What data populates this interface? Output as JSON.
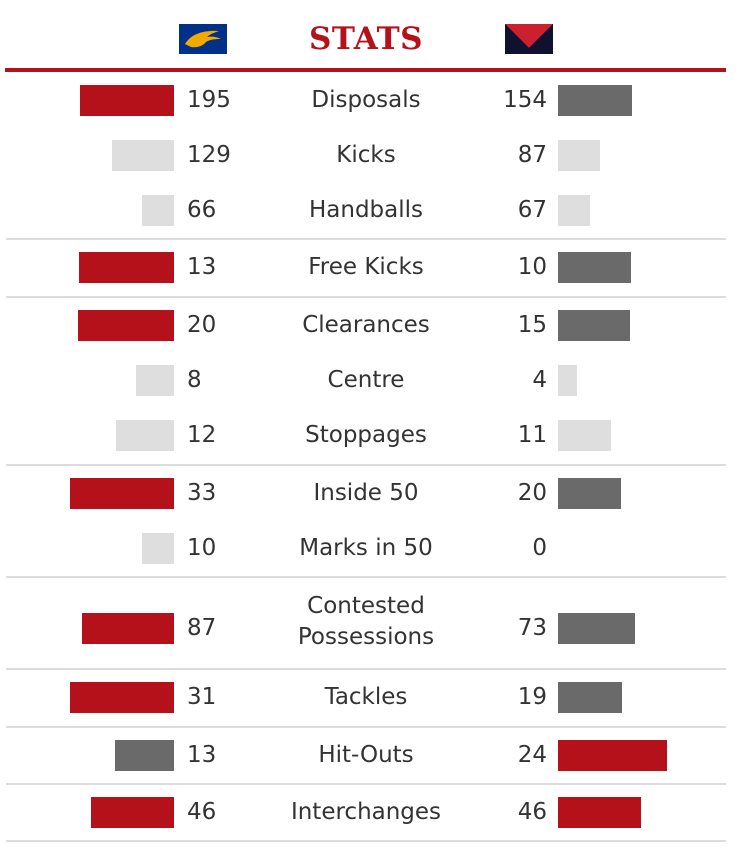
{
  "header": {
    "title": "STATS",
    "home_logo_icon": "eagle-logo-icon",
    "away_logo_icon": "demon-diamond-logo-icon"
  },
  "colors": {
    "leader": "#b5111b",
    "trailer": "#6a6a6a",
    "neutral": "#dedede",
    "title": "#b5111b",
    "home_logo_bg": "#003087",
    "home_logo_accent": "#f2a900",
    "away_logo_top": "#0f1131",
    "away_logo_red": "#cc2031"
  },
  "stats": [
    {
      "label": "Disposals",
      "home": "195",
      "away": "154",
      "home_val": 195,
      "away_val": 154,
      "home_style": "leader",
      "away_style": "trailer",
      "scale": 0.483
    },
    {
      "label": "Kicks",
      "home": "129",
      "away": "87",
      "home_val": 129,
      "away_val": 87,
      "home_style": "neutral",
      "away_style": "neutral",
      "scale": 0.483
    },
    {
      "label": "Handballs",
      "home": "66",
      "away": "67",
      "home_val": 66,
      "away_val": 67,
      "home_style": "neutral",
      "away_style": "neutral",
      "scale": 0.483
    },
    {
      "label": "Free Kicks",
      "home": "13",
      "away": "10",
      "home_val": 13,
      "away_val": 10,
      "home_style": "leader",
      "away_style": "trailer",
      "scale": 7.31
    },
    {
      "label": "Clearances",
      "home": "20",
      "away": "15",
      "home_val": 20,
      "away_val": 15,
      "home_style": "leader",
      "away_style": "trailer",
      "scale": 4.8
    },
    {
      "label": "Centre",
      "home": "8",
      "away": "4",
      "home_val": 8,
      "away_val": 4,
      "home_style": "neutral",
      "away_style": "neutral",
      "scale": 4.8
    },
    {
      "label": "Stoppages",
      "home": "12",
      "away": "11",
      "home_val": 12,
      "away_val": 11,
      "home_style": "neutral",
      "away_style": "neutral",
      "scale": 4.8
    },
    {
      "label": "Inside 50",
      "home": "33",
      "away": "20",
      "home_val": 33,
      "away_val": 20,
      "home_style": "leader",
      "away_style": "trailer",
      "scale": 3.15
    },
    {
      "label": "Marks in 50",
      "home": "10",
      "away": "0",
      "home_val": 10,
      "away_val": 0,
      "home_style": "neutral",
      "away_style": "neutral",
      "scale": 3.15
    },
    {
      "label": "Contested Possessions",
      "label_lines": [
        "Contested",
        "Possessions"
      ],
      "home": "87",
      "away": "73",
      "home_val": 87,
      "away_val": 73,
      "home_style": "leader",
      "away_style": "trailer",
      "scale": 1.06
    },
    {
      "label": "Tackles",
      "home": "31",
      "away": "19",
      "home_val": 31,
      "away_val": 19,
      "home_style": "leader",
      "away_style": "trailer",
      "scale": 3.35
    },
    {
      "label": "Hit-Outs",
      "home": "13",
      "away": "24",
      "home_val": 13,
      "away_val": 24,
      "home_style": "trailer",
      "away_style": "leader",
      "scale": 4.54
    },
    {
      "label": "Interchanges",
      "home": "46",
      "away": "46",
      "home_val": 46,
      "away_val": 46,
      "home_style": "leader",
      "away_style": "leader",
      "scale": 1.8
    }
  ]
}
